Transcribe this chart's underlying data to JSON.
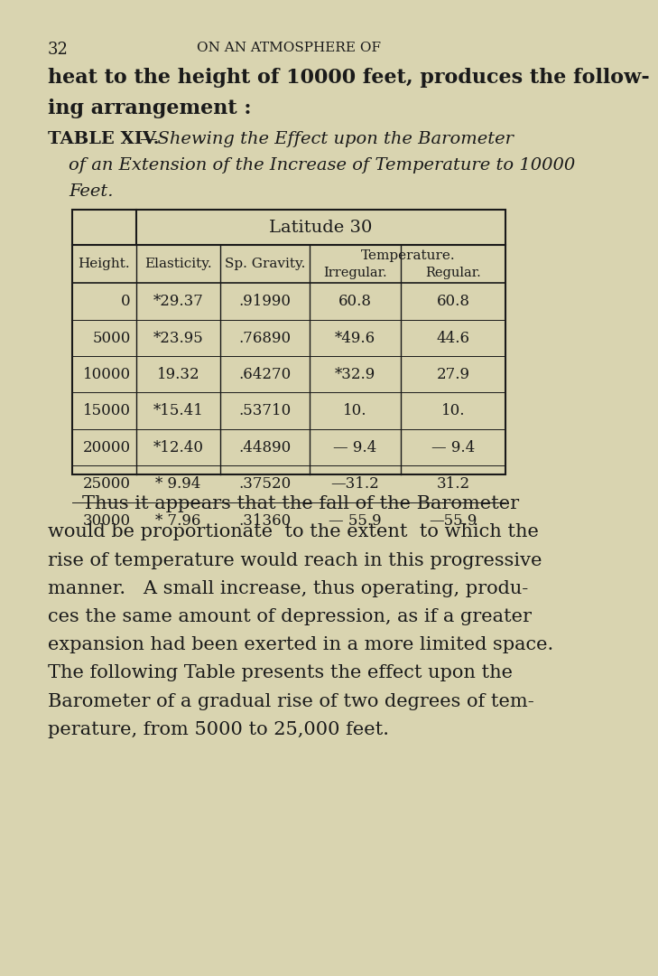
{
  "page_number": "32",
  "header": "ON AN ATMOSPHERE OF",
  "bg_color": "#d9d4b0",
  "text_color": "#1a1a1a",
  "table_title_bold": "TABLE XIV.",
  "table_title_italic": "—Shewing the Effect upon the Barometer of an Extension of the Increase of Temperature to 10000 Feet.",
  "table_header_main": "Latitude 30",
  "col_headers": [
    "Height.",
    "Elasticity.",
    "Sp. Gravity.",
    "Temperature."
  ],
  "sub_col_headers": [
    "Irregular.",
    "Regular."
  ],
  "rows": [
    [
      "0",
      "*29.37",
      ".91990",
      "60.8",
      "60.8"
    ],
    [
      "5000",
      "*23.95",
      ".76890",
      "*49.6",
      "44.6"
    ],
    [
      "10000",
      "19.32",
      ".64270",
      "*32.9",
      "27.9"
    ],
    [
      "15000",
      "*15.41",
      ".53710",
      "10.",
      "10."
    ],
    [
      "20000",
      "*12.40",
      ".44890",
      "— 9.4",
      "— 9.4"
    ],
    [
      "25000",
      "* 9.94",
      ".37520",
      "—31.2",
      "31.2"
    ],
    [
      "30000",
      "* 7.96",
      ".31360",
      "— 55.9",
      "—55.9"
    ]
  ],
  "para_lines": [
    "Thus it appears that the fall of the Barometer",
    "would be proportionate  to the extent  to which the",
    "rise of temperature would reach in this progressive",
    "manner.   A small increase, thus operating, produ-",
    "ces the same amount of depression, as if a greater",
    "expansion had been exerted in a more limited space.",
    "The following Table presents the effect upon the",
    "Barometer of a gradual rise of two degrees of tem-",
    "perature, from 5000 to 25,000 feet."
  ],
  "intro_lines": [
    "heat to the height of 10000 feet, produces the follow-",
    "ing arrangement :"
  ]
}
